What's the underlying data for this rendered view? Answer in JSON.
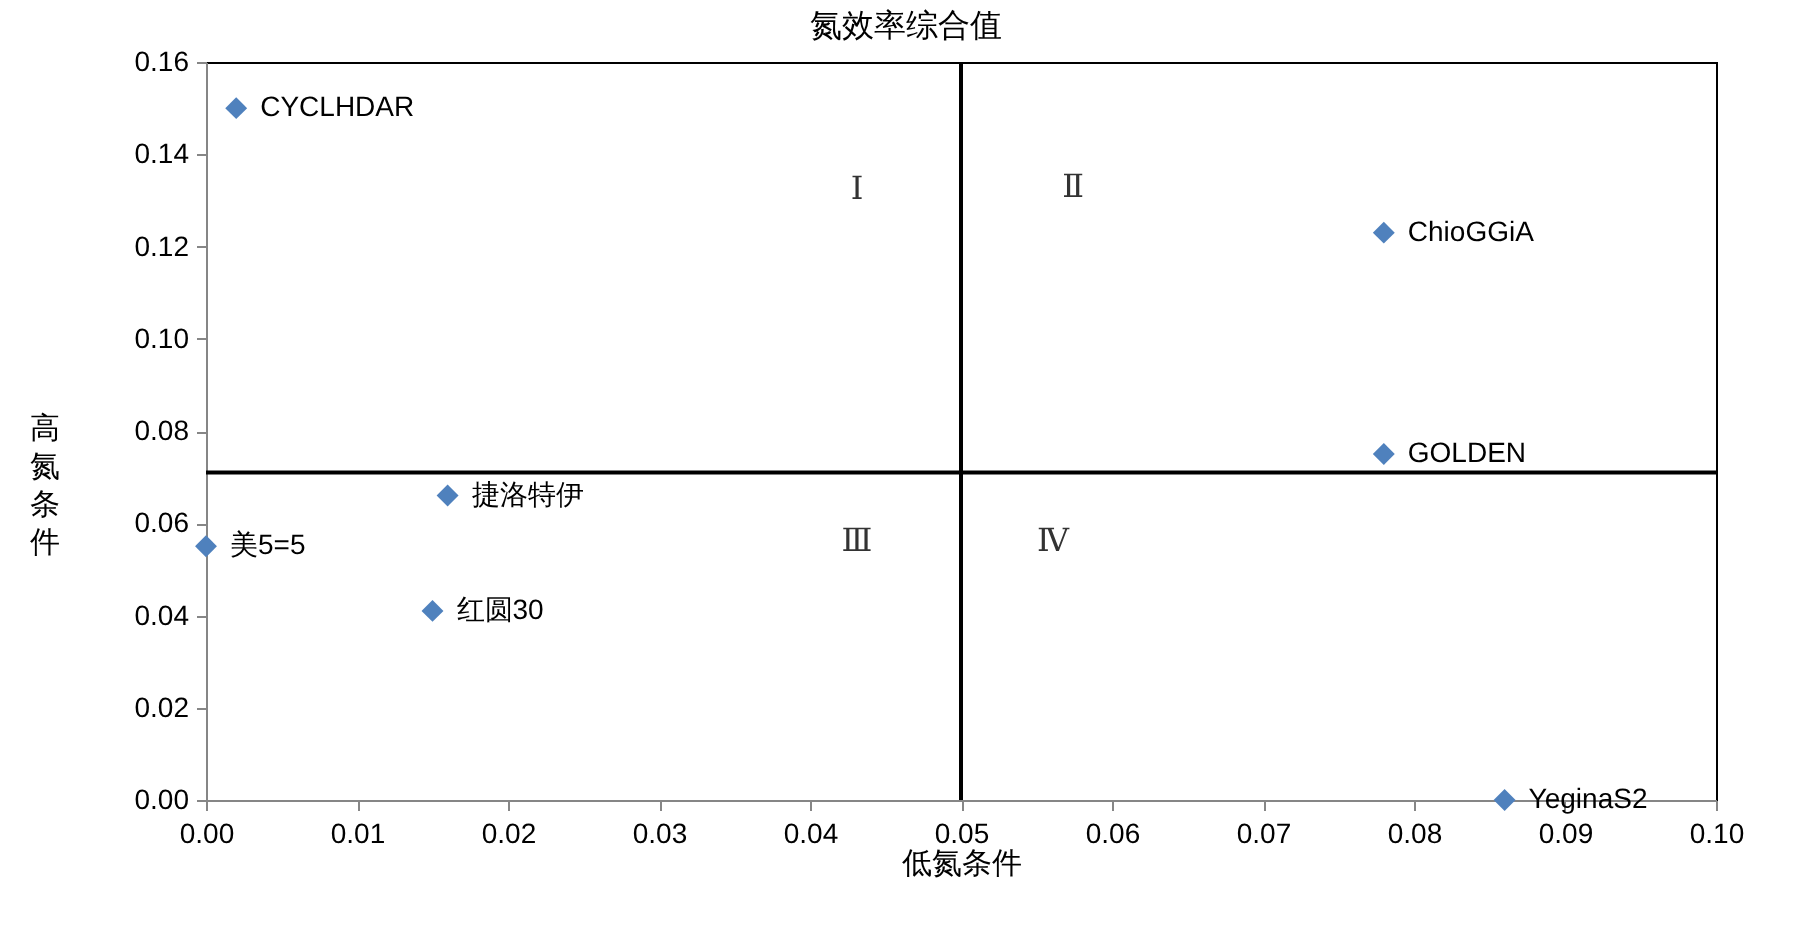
{
  "chart_data": {
    "type": "scatter",
    "title": "氮效率综合值",
    "xlabel": "低氮条件",
    "ylabel": "高氮条件",
    "series": [
      {
        "name": "CYCLHDAR",
        "color": "#4f81bd",
        "x": [
          0.002
        ],
        "values": [
          0.15
        ]
      },
      {
        "name": "ChioGGiA",
        "color": "#4f81bd",
        "x": [
          0.078
        ],
        "values": [
          0.123
        ]
      },
      {
        "name": "GOLDEN",
        "color": "#4f81bd",
        "x": [
          0.078
        ],
        "values": [
          0.075
        ]
      },
      {
        "name": "捷洛特伊",
        "color": "#4f81bd",
        "x": [
          0.016
        ],
        "values": [
          0.066
        ]
      },
      {
        "name": "美5=5",
        "color": "#4f81bd",
        "x": [
          0.0
        ],
        "values": [
          0.055
        ]
      },
      {
        "name": "红圆30",
        "color": "#4f81bd",
        "x": [
          0.015
        ],
        "values": [
          0.041
        ]
      },
      {
        "name": "YeginaS2",
        "color": "#4f81bd",
        "x": [
          0.086
        ],
        "values": [
          0.0
        ]
      }
    ],
    "xlim": [
      0,
      0.1
    ],
    "ylim": [
      0,
      0.16
    ],
    "xticks": [
      {
        "value": 0,
        "label": "0.00"
      },
      0.01,
      0.02,
      0.03,
      0.04,
      0.05,
      0.06,
      0.07,
      0.08,
      0.09,
      {
        "value": 0.1,
        "label": "0.10"
      }
    ],
    "yticks": [
      {
        "value": 0,
        "label": "0.00"
      },
      0.02,
      0.04,
      0.06,
      0.08,
      {
        "value": 0.1,
        "label": "0.10"
      },
      0.12,
      0.14,
      0.16
    ],
    "ref_lines": [
      {
        "axis": "x",
        "value": 0.05,
        "color": "#000000"
      },
      {
        "axis": "y",
        "value": 0.071,
        "color": "#000000"
      }
    ],
    "annotations": [
      "Ⅰ",
      "Ⅱ",
      "Ⅲ",
      "Ⅳ"
    ],
    "marker": "diamond",
    "grid": false,
    "legend": false
  }
}
